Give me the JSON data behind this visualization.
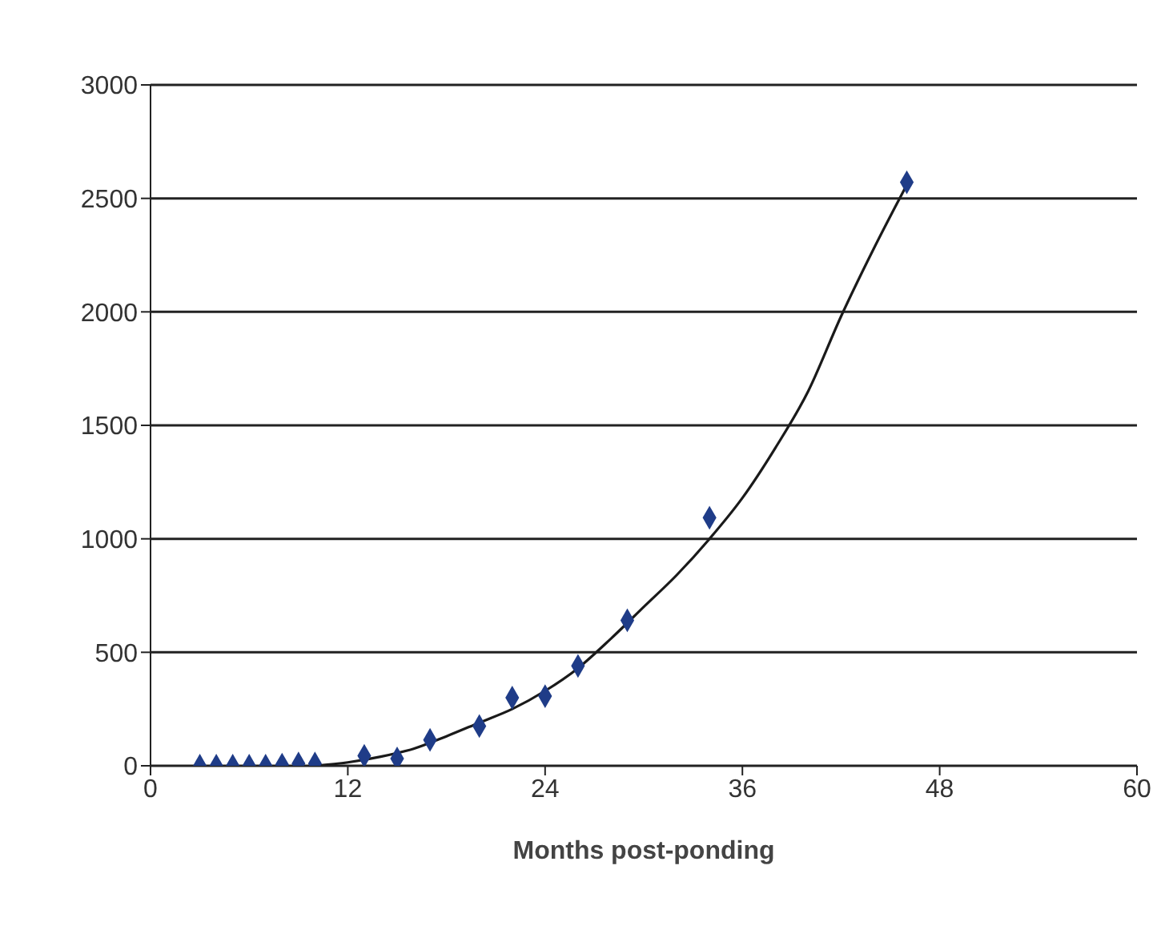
{
  "chart_data": {
    "type": "scatter",
    "xlabel": "Months post-ponding",
    "xlim": [
      0,
      60
    ],
    "xticks": [
      0,
      12,
      24,
      36,
      48,
      60
    ],
    "ylim": [
      0,
      3000
    ],
    "yticks": [
      0,
      500,
      1000,
      1500,
      2000,
      2500,
      3000
    ],
    "grid": "y",
    "legend": false,
    "series": [
      {
        "color": "#1f3c88",
        "marker": "diamond",
        "x": [
          3,
          4,
          5,
          6,
          7,
          8,
          9,
          10,
          13,
          15,
          17,
          20,
          22,
          24,
          26,
          29,
          34,
          46
        ],
        "values": [
          0,
          0,
          0,
          0,
          0,
          5,
          10,
          10,
          44,
          32,
          114,
          175,
          300,
          307,
          440,
          641,
          1093,
          2571
        ]
      },
      {
        "type": "line",
        "color": "#1a1a1a",
        "marker": "none",
        "line_style": "solid",
        "x": [
          10,
          12,
          14,
          16,
          18,
          20,
          22,
          24,
          26,
          28,
          30,
          32,
          34,
          36,
          38,
          40,
          42,
          44,
          46
        ],
        "values": [
          0,
          15,
          40,
          75,
          130,
          190,
          250,
          330,
          430,
          560,
          700,
          840,
          1000,
          1180,
          1400,
          1650,
          1980,
          2280,
          2560
        ]
      }
    ]
  }
}
